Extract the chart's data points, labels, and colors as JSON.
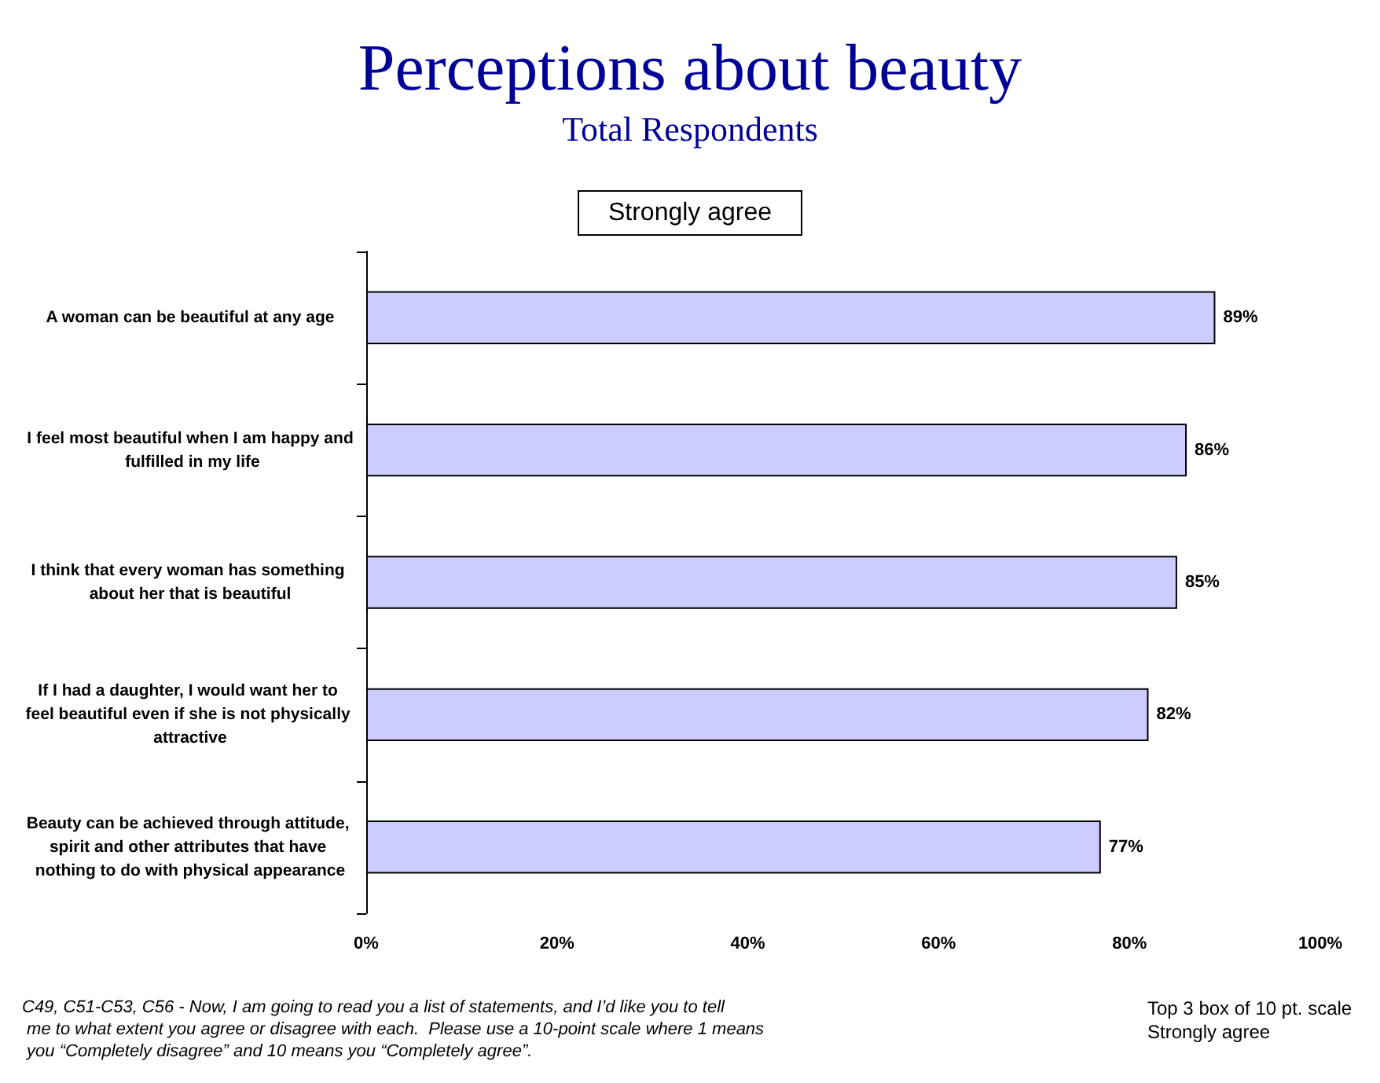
{
  "chart_data": {
    "type": "bar",
    "orientation": "horizontal",
    "title": "Perceptions about beauty",
    "subtitle": "Total Respondents",
    "categories": [
      "A woman can be beautiful at any age",
      "I feel most beautiful when I am happy and fulfilled in my life",
      "I think that every woman has something about her that is beautiful",
      "If I had a daughter, I would want her to feel beautiful even if she is not physically attractive",
      "Beauty can be achieved through attitude, spirit and other attributes that have nothing to do with physical appearance"
    ],
    "values": [
      89,
      86,
      85,
      82,
      77
    ],
    "value_labels": [
      "89%",
      "86%",
      "85%",
      "82%",
      "77%"
    ],
    "color": "#ccccff",
    "xlim": [
      0,
      100
    ],
    "xticks": [
      {
        "value": 0,
        "label": "0%"
      },
      {
        "value": 20,
        "label": "20%"
      },
      {
        "value": 40,
        "label": "40%"
      },
      {
        "value": 60,
        "label": "60%"
      },
      {
        "value": 80,
        "label": "80%"
      },
      {
        "value": 100,
        "label": "100%"
      }
    ],
    "grid": false,
    "annotations": [
      "Strongly agree",
      "C49, C51-C53, C56 - Now, I am going to read you a list of statements, and I’d like you to tell me to what extent you agree or disagree with each.  Please use a 10-point scale where 1 means you “Completely disagree” and 10 means you “Completely agree”.",
      "Top 3 box of 10 pt. scale\nStrongly agree"
    ]
  }
}
